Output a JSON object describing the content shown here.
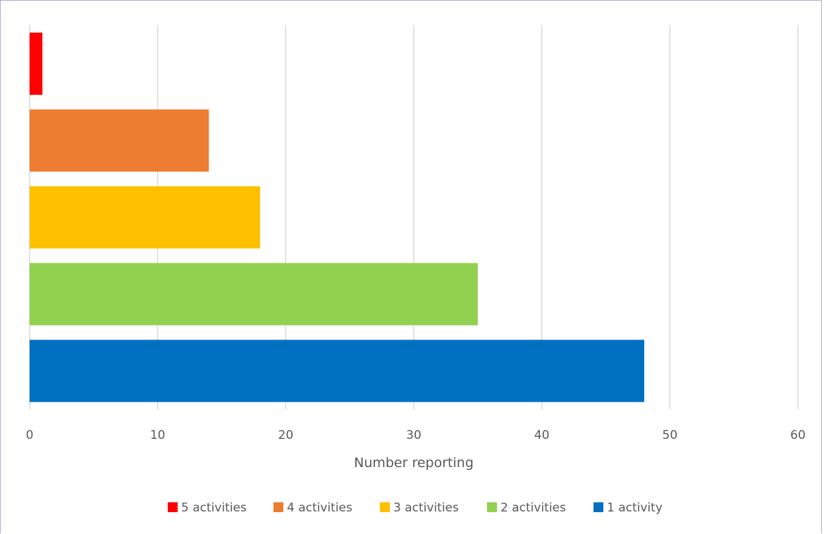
{
  "chart_data": {
    "type": "bar",
    "orientation": "horizontal",
    "categories": [
      "1 activity",
      "2 activities",
      "3 activities",
      "4 activities",
      "5 activities"
    ],
    "values": [
      48,
      35,
      18,
      14,
      1
    ],
    "colors": [
      "#0070c0",
      "#92d050",
      "#ffc000",
      "#ed7d31",
      "#ff0000"
    ],
    "xlabel": "Number reporting",
    "xlim": [
      0,
      60
    ],
    "xticks": [
      "0",
      "10",
      "20",
      "30",
      "40",
      "50",
      "60"
    ],
    "grid": true,
    "legend_position": "bottom",
    "legend": [
      "5 activities",
      "4 activities",
      "3 activities",
      "2 activities",
      "1 activity"
    ]
  }
}
